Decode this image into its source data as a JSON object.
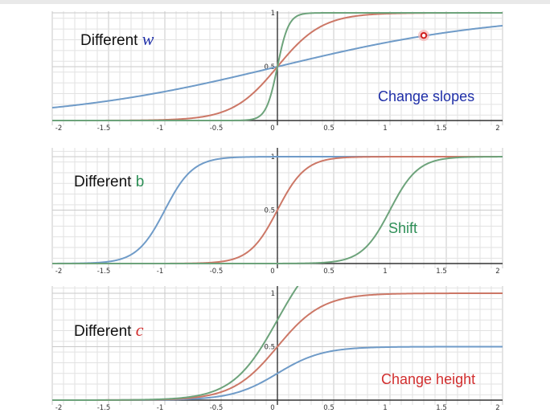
{
  "colors": {
    "blue": "#6f9bc8",
    "red": "#cc7766",
    "green": "#6da37b",
    "annotation_blue": "#1f2fa8",
    "annotation_green": "#2e8f57",
    "annotation_red": "#d22f2f"
  },
  "chart_data": [
    {
      "type": "line",
      "xlim": [
        -2,
        2
      ],
      "ylim": [
        0,
        1
      ],
      "grid": true,
      "x_ticks": [
        "-2",
        "-1.5",
        "-1",
        "-0.5",
        "0",
        "0.5",
        "1",
        "1.5",
        "2"
      ],
      "y_ticks": [
        "0.5",
        "1"
      ],
      "annotations": {
        "prefix": "Different ",
        "var": "w",
        "note": "Change slopes"
      },
      "series": [
        {
          "color": "blue",
          "formula": "1/(1+exp(-(w*x+b)))",
          "w": 1,
          "b": 0
        },
        {
          "color": "red",
          "formula": "1/(1+exp(-(w*x+b)))",
          "w": 5,
          "b": 0
        },
        {
          "color": "green",
          "formula": "1/(1+exp(-(w*x+b)))",
          "w": 20,
          "b": 0
        }
      ],
      "marker": {
        "x": 1.3,
        "y": 0.79
      }
    },
    {
      "type": "line",
      "xlim": [
        -2,
        2
      ],
      "ylim": [
        0,
        1
      ],
      "grid": true,
      "x_ticks": [
        "-2",
        "-1.5",
        "-1",
        "-0.5",
        "0",
        "0.5",
        "1",
        "1.5",
        "2"
      ],
      "y_ticks": [
        "0.5",
        "1"
      ],
      "annotations": {
        "prefix": "Different ",
        "var": "b",
        "note": "Shift"
      },
      "series": [
        {
          "color": "blue",
          "formula": "1/(1+exp(-(w*x+b)))",
          "w": 8,
          "b": 8
        },
        {
          "color": "red",
          "formula": "1/(1+exp(-(w*x+b)))",
          "w": 8,
          "b": 0
        },
        {
          "color": "green",
          "formula": "1/(1+exp(-(w*x+b)))",
          "w": 8,
          "b": -8
        }
      ]
    },
    {
      "type": "line",
      "xlim": [
        -2,
        2
      ],
      "ylim": [
        0,
        1
      ],
      "grid": true,
      "x_ticks": [
        "-2",
        "-1.5",
        "-1",
        "-0.5",
        "0",
        "0.5",
        "1",
        "1.5",
        "2"
      ],
      "y_ticks": [
        "0.5",
        "1"
      ],
      "annotations": {
        "prefix": "Different ",
        "var": "c",
        "note": "Change height"
      },
      "series": [
        {
          "color": "blue",
          "formula": "c/(1+exp(-(w*x+b)))",
          "w": 5,
          "b": 0,
          "c": 0.5
        },
        {
          "color": "red",
          "formula": "c/(1+exp(-(w*x+b)))",
          "w": 5,
          "b": 0,
          "c": 1
        },
        {
          "color": "green",
          "formula": "c/(1+exp(-(w*x+b)))",
          "w": 5,
          "b": 0,
          "c": 1.5
        }
      ]
    }
  ]
}
